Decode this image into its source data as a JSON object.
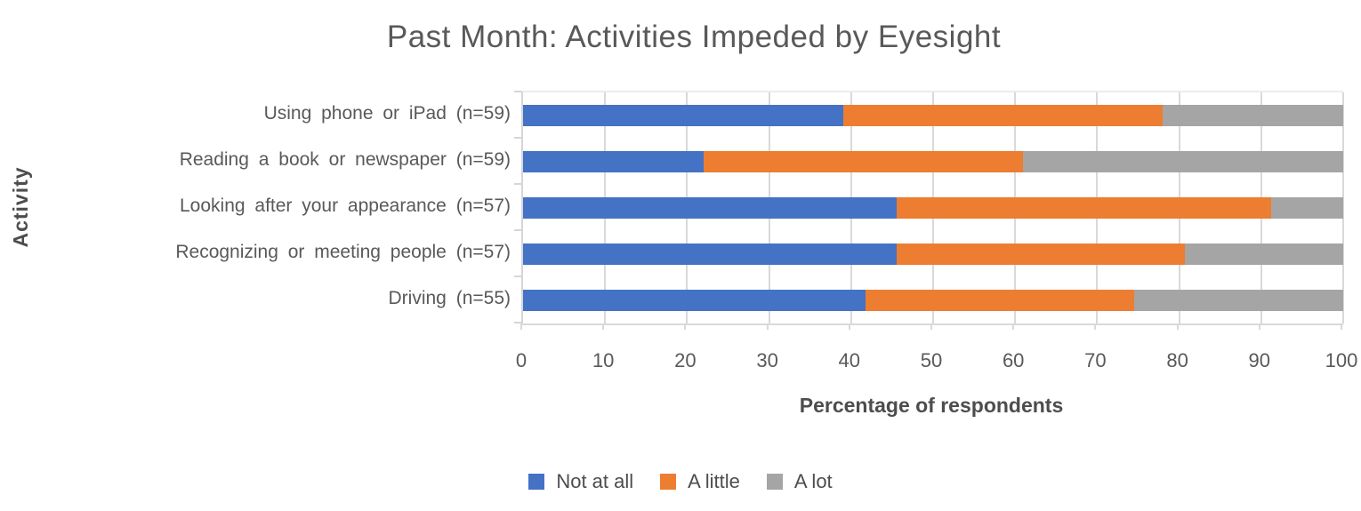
{
  "chart_data": {
    "type": "bar",
    "orientation": "horizontal",
    "stacked": true,
    "title": "Past Month: Activities Impeded by Eyesight",
    "xlabel": "Percentage of respondents",
    "ylabel": "Activity",
    "xlim": [
      0,
      100
    ],
    "x_ticks": [
      0,
      10,
      20,
      30,
      40,
      50,
      60,
      70,
      80,
      90,
      100
    ],
    "grid": "vertical-major",
    "legend_position": "bottom",
    "categories": [
      "Using phone or iPad (n=59)",
      "Reading a book or newspaper (n=59)",
      "Looking after your appearance (n=57)",
      "Recognizing or meeting people (n=57)",
      "Driving (n=55)"
    ],
    "series": [
      {
        "name": "Not at all",
        "color": "#4472C4",
        "values": [
          39.0,
          22.0,
          45.6,
          45.6,
          41.8
        ]
      },
      {
        "name": "A little",
        "color": "#ED7D31",
        "values": [
          39.0,
          39.0,
          45.6,
          35.1,
          32.7
        ]
      },
      {
        "name": "A lot",
        "color": "#A5A5A5",
        "values": [
          22.0,
          39.0,
          8.8,
          19.3,
          25.5
        ]
      }
    ]
  }
}
